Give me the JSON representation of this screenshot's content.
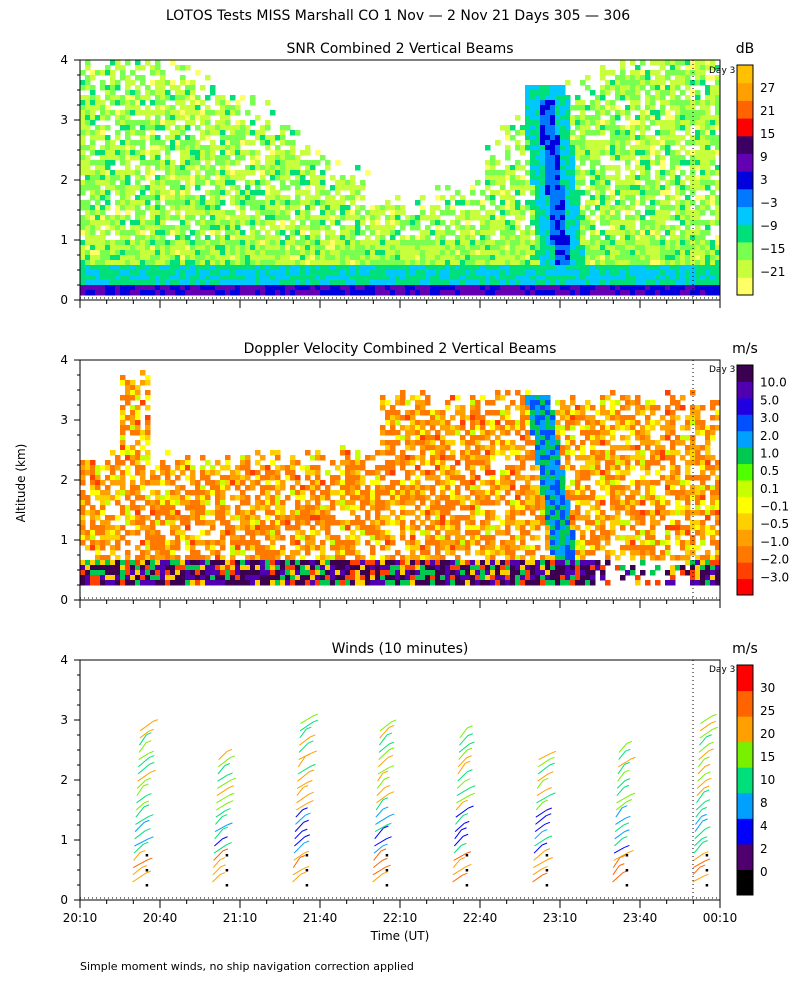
{
  "header": {
    "title": "LOTOS Tests MISS Marshall CO   1 Nov —  2 Nov 21 Days 305 — 306"
  },
  "footer": {
    "note": "Simple moment winds, no ship navigation correction applied"
  },
  "shared": {
    "ylabel": "Altitude (km)",
    "xlabel": "Time (UT)",
    "x_ticks": [
      "20:10",
      "20:40",
      "21:10",
      "21:40",
      "22:10",
      "22:40",
      "23:10",
      "23:40",
      "00:10"
    ],
    "y_ticks": [
      "0",
      "1",
      "2",
      "3",
      "4"
    ],
    "day_marker": "Day 3"
  },
  "chart_data": [
    {
      "type": "heatmap",
      "title": "SNR Combined 2 Vertical Beams",
      "ylim": [
        0,
        4
      ],
      "xlim": [
        "20:10",
        "00:10"
      ],
      "colorbar": {
        "unit": "dB",
        "ticks": [
          "27",
          "21",
          "15",
          "9",
          "3",
          "−3",
          "−9",
          "−15",
          "−21"
        ],
        "colors": [
          "#ffff66",
          "#c8ff3c",
          "#78ff50",
          "#00e07a",
          "#00c8ff",
          "#0078ff",
          "#0000dc",
          "#6400b4",
          "#3c0064",
          "#ff0000",
          "#ff6400",
          "#ffa000",
          "#ffc000"
        ]
      },
      "features": [
        {
          "description_time": "23:08",
          "altitude_range_km": [
            0.3,
            3.3
          ]
        }
      ]
    },
    {
      "type": "heatmap",
      "title": "Doppler Velocity Combined 2 Vertical Beams",
      "ylim": [
        0,
        4
      ],
      "xlim": [
        "20:10",
        "00:10"
      ],
      "colorbar": {
        "unit": "m/s",
        "ticks": [
          "10.0",
          "5.0",
          "3.0",
          "2.0",
          "1.0",
          "0.5",
          "0.1",
          "−0.1",
          "−0.5",
          "−1.0",
          "−2.0",
          "−3.0"
        ],
        "colors": [
          "#ff0000",
          "#ff4000",
          "#ff7800",
          "#ffa000",
          "#ffd000",
          "#ffff00",
          "#c8ff00",
          "#50ff00",
          "#00c850",
          "#00a0ff",
          "#0050ff",
          "#2000e0",
          "#5000b0",
          "#3c0050"
        ]
      }
    },
    {
      "type": "scatter",
      "title": "Winds (10 minutes)",
      "ylim": [
        0,
        4
      ],
      "xlim": [
        "20:10",
        "00:10"
      ],
      "profile_times": [
        "20:35",
        "21:05",
        "21:35",
        "22:05",
        "22:35",
        "23:05",
        "23:35",
        "00:05"
      ],
      "colorbar": {
        "unit": "m/s",
        "ticks": [
          "30",
          "25",
          "20",
          "15",
          "10",
          "8",
          "4",
          "2",
          "0"
        ],
        "colors": [
          "#000000",
          "#50006e",
          "#0000ff",
          "#00a0ff",
          "#00e07a",
          "#78f000",
          "#ffa000",
          "#ff6400",
          "#ff0000"
        ]
      }
    }
  ]
}
